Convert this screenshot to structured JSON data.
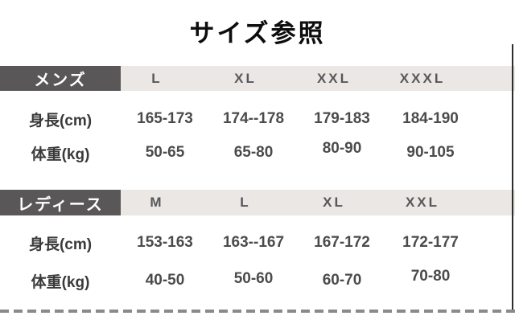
{
  "title": "サイズ参照",
  "sections": {
    "mens": {
      "label": "メンズ",
      "sizes": [
        "L",
        "XL",
        "XXL",
        "XXXL"
      ],
      "rows": [
        {
          "label": "身長(cm)",
          "values": [
            "165-173",
            "174--178",
            "179-183",
            "184-190"
          ]
        },
        {
          "label": "体重(kg)",
          "values": [
            "50-65",
            "65-80",
            "80-90",
            "90-105"
          ]
        }
      ]
    },
    "ladies": {
      "label": "レディース",
      "sizes": [
        "M",
        "L",
        "XL",
        "XXL"
      ],
      "rows": [
        {
          "label": "身長(cm)",
          "values": [
            "153-163",
            "163--167",
            "167-172",
            "172-177"
          ]
        },
        {
          "label": "体重(kg)",
          "values": [
            "40-50",
            "50-60",
            "60-70",
            "70-80"
          ]
        }
      ]
    }
  },
  "colors": {
    "category_bg": "#595757",
    "header_band_bg": "#eae7e4",
    "title_text": "#0d0d0d",
    "value_text": "#4b4b4b",
    "size_text": "#57575b",
    "dash_border": "#8a8a8a",
    "right_line": "#2e2d2c"
  },
  "chart_data": [
    {
      "type": "table",
      "title": "サイズ参照",
      "section": "メンズ",
      "columns": [
        "",
        "L",
        "XL",
        "XXL",
        "XXXL"
      ],
      "rows": [
        [
          "身長(cm)",
          "165-173",
          "174--178",
          "179-183",
          "184-190"
        ],
        [
          "体重(kg)",
          "50-65",
          "65-80",
          "80-90",
          "90-105"
        ]
      ]
    },
    {
      "type": "table",
      "title": "サイズ参照",
      "section": "レディース",
      "columns": [
        "",
        "M",
        "L",
        "XL",
        "XXL"
      ],
      "rows": [
        [
          "身長(cm)",
          "153-163",
          "163--167",
          "167-172",
          "172-177"
        ],
        [
          "体重(kg)",
          "40-50",
          "50-60",
          "60-70",
          "70-80"
        ]
      ]
    }
  ]
}
